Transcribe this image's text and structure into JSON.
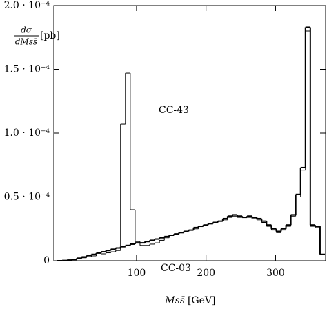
{
  "chart_data": {
    "type": "histogram",
    "xlabel": {
      "symbol": "Mss̄",
      "unit": "[GeV]"
    },
    "ylabel": {
      "numerator": "dσ",
      "denominator": "dMss̄",
      "unit": "[pb]"
    },
    "bins": [
      -14,
      -7,
      0,
      7,
      14,
      21,
      28,
      35,
      42,
      49,
      56,
      63,
      70,
      77,
      84,
      91,
      98,
      105,
      112,
      119,
      126,
      133,
      140,
      147,
      154,
      161,
      168,
      175,
      182,
      189,
      196,
      203,
      210,
      217,
      224,
      231,
      238,
      245,
      252,
      259,
      266,
      273,
      280,
      287,
      294,
      301,
      308,
      315,
      322,
      329,
      336,
      343,
      350,
      357,
      364,
      371
    ],
    "series": [
      {
        "name": "CC-03",
        "color": "#000000",
        "width": 2,
        "values": [
          0,
          2e-07,
          5e-07,
          1e-06,
          2e-06,
          3e-06,
          4e-06,
          5e-06,
          6e-06,
          7e-06,
          8e-06,
          9e-06,
          1e-05,
          1.1e-05,
          1.2e-05,
          1.3e-05,
          1.4e-05,
          1.4e-05,
          1.5e-05,
          1.6e-05,
          1.7e-05,
          1.8e-05,
          1.9e-05,
          2e-05,
          2.1e-05,
          2.2e-05,
          2.3e-05,
          2.4e-05,
          2.6e-05,
          2.7e-05,
          2.8e-05,
          2.9e-05,
          3e-05,
          3.1e-05,
          3.3e-05,
          3.5e-05,
          3.6e-05,
          3.5e-05,
          3.4e-05,
          3.5e-05,
          3.4e-05,
          3.3e-05,
          3.1e-05,
          2.8e-05,
          2.5e-05,
          2.3e-05,
          2.5e-05,
          2.8e-05,
          3.6e-05,
          5.2e-05,
          7.3e-05,
          0.000183,
          2.8e-05,
          2.7e-05,
          5e-06
        ]
      },
      {
        "name": "CC-43",
        "color": "#000000",
        "width": 1,
        "values": [
          0,
          1e-07,
          3e-07,
          7e-07,
          1.5e-06,
          2.3e-06,
          3e-06,
          3.8e-06,
          4.6e-06,
          5.4e-06,
          6.2e-06,
          7e-06,
          8e-06,
          0.000107,
          0.000147,
          4e-05,
          1.5e-05,
          1.2e-05,
          1.2e-05,
          1.3e-05,
          1.4e-05,
          1.6e-05,
          1.8e-05,
          2e-05,
          2.1e-05,
          2.2e-05,
          2.3e-05,
          2.4e-05,
          2.5e-05,
          2.7e-05,
          2.8e-05,
          2.9e-05,
          3e-05,
          3.1e-05,
          3.2e-05,
          3.4e-05,
          3.5e-05,
          3.4e-05,
          3.4e-05,
          3.4e-05,
          3.3e-05,
          3.2e-05,
          3e-05,
          2.7e-05,
          2.4e-05,
          2.2e-05,
          2.4e-05,
          2.7e-05,
          3.5e-05,
          5e-05,
          7.1e-05,
          0.00018,
          2.7e-05,
          2.6e-05,
          5e-06
        ]
      }
    ],
    "xlim": [
      -19,
      372
    ],
    "xticks": [
      100,
      200,
      300
    ],
    "ylim": [
      0,
      0.0002
    ],
    "yticks": [
      0,
      {
        "value": 5e-05,
        "label": "0.5 · 10⁻⁴"
      },
      {
        "value": 0.0001,
        "label": "1.0 · 10⁻⁴"
      },
      {
        "value": 0.00015,
        "label": "1.5 · 10⁻⁴"
      },
      {
        "value": 0.0002,
        "label": "2.0 · 10⁻⁴"
      }
    ],
    "grid": false
  }
}
